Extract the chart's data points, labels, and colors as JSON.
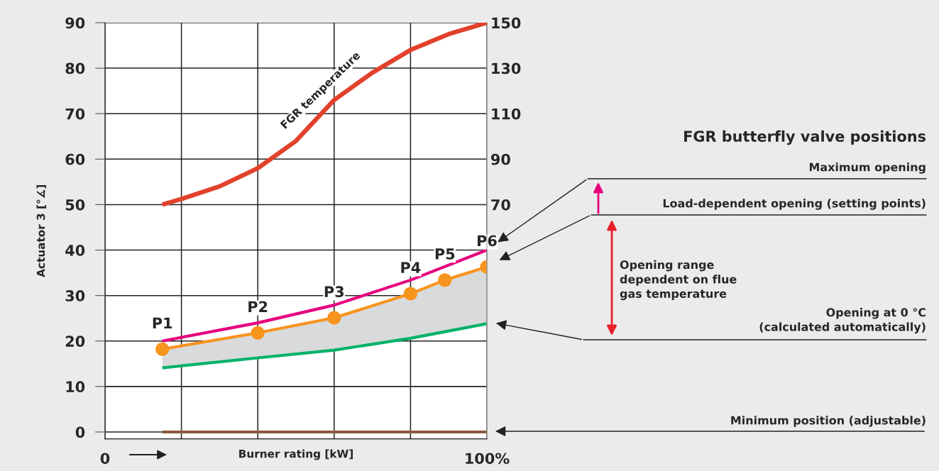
{
  "chart_data": {
    "type": "line",
    "ylabel": "Actuator 3 [°∡]",
    "xlabel": "Burner rating [kW]",
    "xlim": [
      0,
      100
    ],
    "xticks": [
      {
        "value": 0,
        "label": "0"
      },
      {
        "value": 20,
        "label": null
      },
      {
        "value": 40,
        "label": null
      },
      {
        "value": 60,
        "label": null
      },
      {
        "value": 80,
        "label": null
      },
      {
        "value": 100,
        "label": "100%"
      }
    ],
    "ylim": [
      -1.5,
      90
    ],
    "yticks": [
      0,
      10,
      20,
      30,
      40,
      50,
      60,
      70,
      80,
      90
    ],
    "y2lim": [
      -33,
      150
    ],
    "y2ticks": [
      70,
      90,
      110,
      130,
      150
    ],
    "grid": true,
    "series": [
      {
        "axis": "y2",
        "color": "#e2412b",
        "x": [
          15,
          20,
          30,
          40,
          50,
          60,
          70,
          80,
          90,
          100
        ],
        "values": [
          70,
          72.5,
          78,
          86,
          98,
          116,
          128,
          138,
          145,
          150
        ]
      },
      {
        "color": "#e6007e",
        "x": [
          15,
          40,
          60,
          80,
          100
        ],
        "values": [
          20,
          24,
          27.9,
          33.4,
          40
        ]
      },
      {
        "color": "#f7941d",
        "marker": "circle",
        "x": [
          15,
          40,
          60,
          80,
          89,
          100
        ],
        "values": [
          18.2,
          21.8,
          25.1,
          30.4,
          33.4,
          36.3
        ],
        "lower": [
          14.1,
          16.3,
          18,
          20.6,
          22.2,
          23.8
        ],
        "upper": [
          18.2,
          21.8,
          25.1,
          30.4,
          33.4,
          36.3
        ]
      },
      {
        "color": "#00b26a",
        "x": [
          15,
          40,
          60,
          80,
          100
        ],
        "values": [
          14.1,
          16.3,
          18,
          20.6,
          23.8
        ]
      },
      {
        "color": "#8b5a3c",
        "x": [
          15,
          100
        ],
        "values": [
          0,
          0
        ]
      }
    ],
    "annotations": [
      {
        "text": "P1",
        "x": 15,
        "y": 18.2
      },
      {
        "text": "P2",
        "x": 40,
        "y": 21.8
      },
      {
        "text": "P3",
        "x": 60,
        "y": 25.1
      },
      {
        "text": "P4",
        "x": 80,
        "y": 30.4
      },
      {
        "text": "P5",
        "x": 89,
        "y": 33.4
      },
      {
        "text": "P6",
        "x": 100,
        "y": 36.3
      },
      "FGR temperature",
      "FGR butterfly valve positions",
      "Maximum opening",
      "Load-dependent opening (setting points)",
      "Opening range\ndependent on flue\ngas temperature",
      "Opening at 0 °C\n(calculated automatically)",
      "Minimum position (adjustable)"
    ]
  }
}
